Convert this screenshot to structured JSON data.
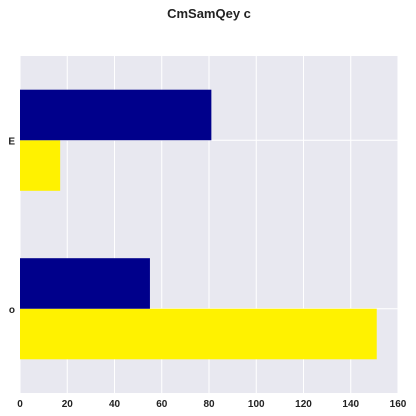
{
  "chart_data": {
    "type": "bar",
    "orientation": "horizontal",
    "title": "CmSamQey c",
    "xlabel": "",
    "ylabel": "",
    "categories": [
      "o",
      "E"
    ],
    "series": [
      {
        "values": [
          151,
          17
        ],
        "color": "#fff200"
      },
      {
        "values": [
          55,
          81
        ],
        "color": "#00008b"
      }
    ],
    "xlim": [
      0,
      160
    ],
    "xticks": [
      0,
      20,
      40,
      60,
      80,
      100,
      120,
      140,
      160
    ],
    "grid": true,
    "legend": "none",
    "background": "#e8e8f0"
  }
}
